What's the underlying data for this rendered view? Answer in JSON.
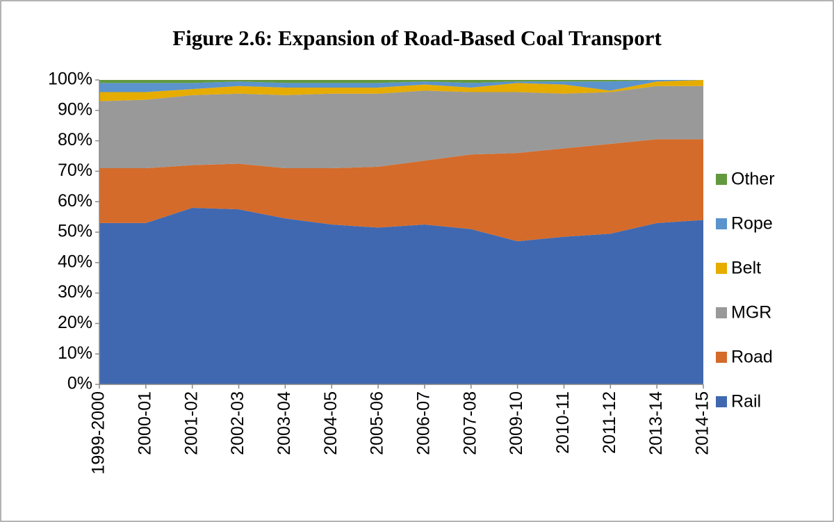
{
  "chart_data": {
    "type": "stacked_area",
    "title": "Figure 2.6: Expansion of Road-Based Coal Transport",
    "categories": [
      "1999-2000",
      "2000-01",
      "2001-02",
      "2002-03",
      "2003-04",
      "2004-05",
      "2005-06",
      "2006-07",
      "2007-08",
      "2009-10",
      "2010-11",
      "2011-12",
      "2013-14",
      "2014-15"
    ],
    "series": [
      {
        "name": "Rail",
        "color": "#4068b0",
        "values": [
          53,
          53,
          58,
          57.5,
          54.5,
          52.5,
          51.5,
          52.5,
          51,
          47,
          48.5,
          49.5,
          53,
          54
        ]
      },
      {
        "name": "Road",
        "color": "#d46b2a",
        "values": [
          18,
          18,
          14,
          15,
          16.5,
          18.5,
          20,
          21,
          24.5,
          29,
          29,
          29.5,
          27.5,
          26.5
        ]
      },
      {
        "name": "MGR",
        "color": "#999999",
        "values": [
          22,
          22.5,
          23,
          23,
          24,
          24.5,
          24,
          23,
          20.5,
          20,
          18,
          17,
          17.5,
          17.5
        ]
      },
      {
        "name": "Belt",
        "color": "#e6ac00",
        "values": [
          3,
          2.5,
          2,
          2.5,
          2.5,
          2,
          2,
          2,
          1.5,
          3,
          3,
          0.5,
          1.5,
          2
        ]
      },
      {
        "name": "Rope",
        "color": "#5b93cc",
        "values": [
          3,
          3,
          2,
          1.5,
          1.5,
          1.5,
          1.5,
          1,
          1.5,
          0.5,
          1,
          3,
          0.5,
          0
        ]
      },
      {
        "name": "Other",
        "color": "#62993e",
        "values": [
          1,
          1,
          1,
          0.5,
          1,
          1,
          1,
          0.5,
          1,
          0.5,
          0.5,
          0.5,
          0,
          0
        ]
      }
    ],
    "ylim": [
      0,
      100
    ],
    "yticks": [
      {
        "value": 0,
        "label": "0%"
      },
      {
        "value": 10,
        "label": "10%"
      },
      {
        "value": 20,
        "label": "20%"
      },
      {
        "value": 30,
        "label": "30%"
      },
      {
        "value": 40,
        "label": "40%"
      },
      {
        "value": 50,
        "label": "50%"
      },
      {
        "value": 60,
        "label": "60%"
      },
      {
        "value": 70,
        "label": "70%"
      },
      {
        "value": 80,
        "label": "80%"
      },
      {
        "value": 90,
        "label": "90%"
      },
      {
        "value": 100,
        "label": "100%"
      }
    ],
    "grid": false,
    "legend": "right"
  }
}
